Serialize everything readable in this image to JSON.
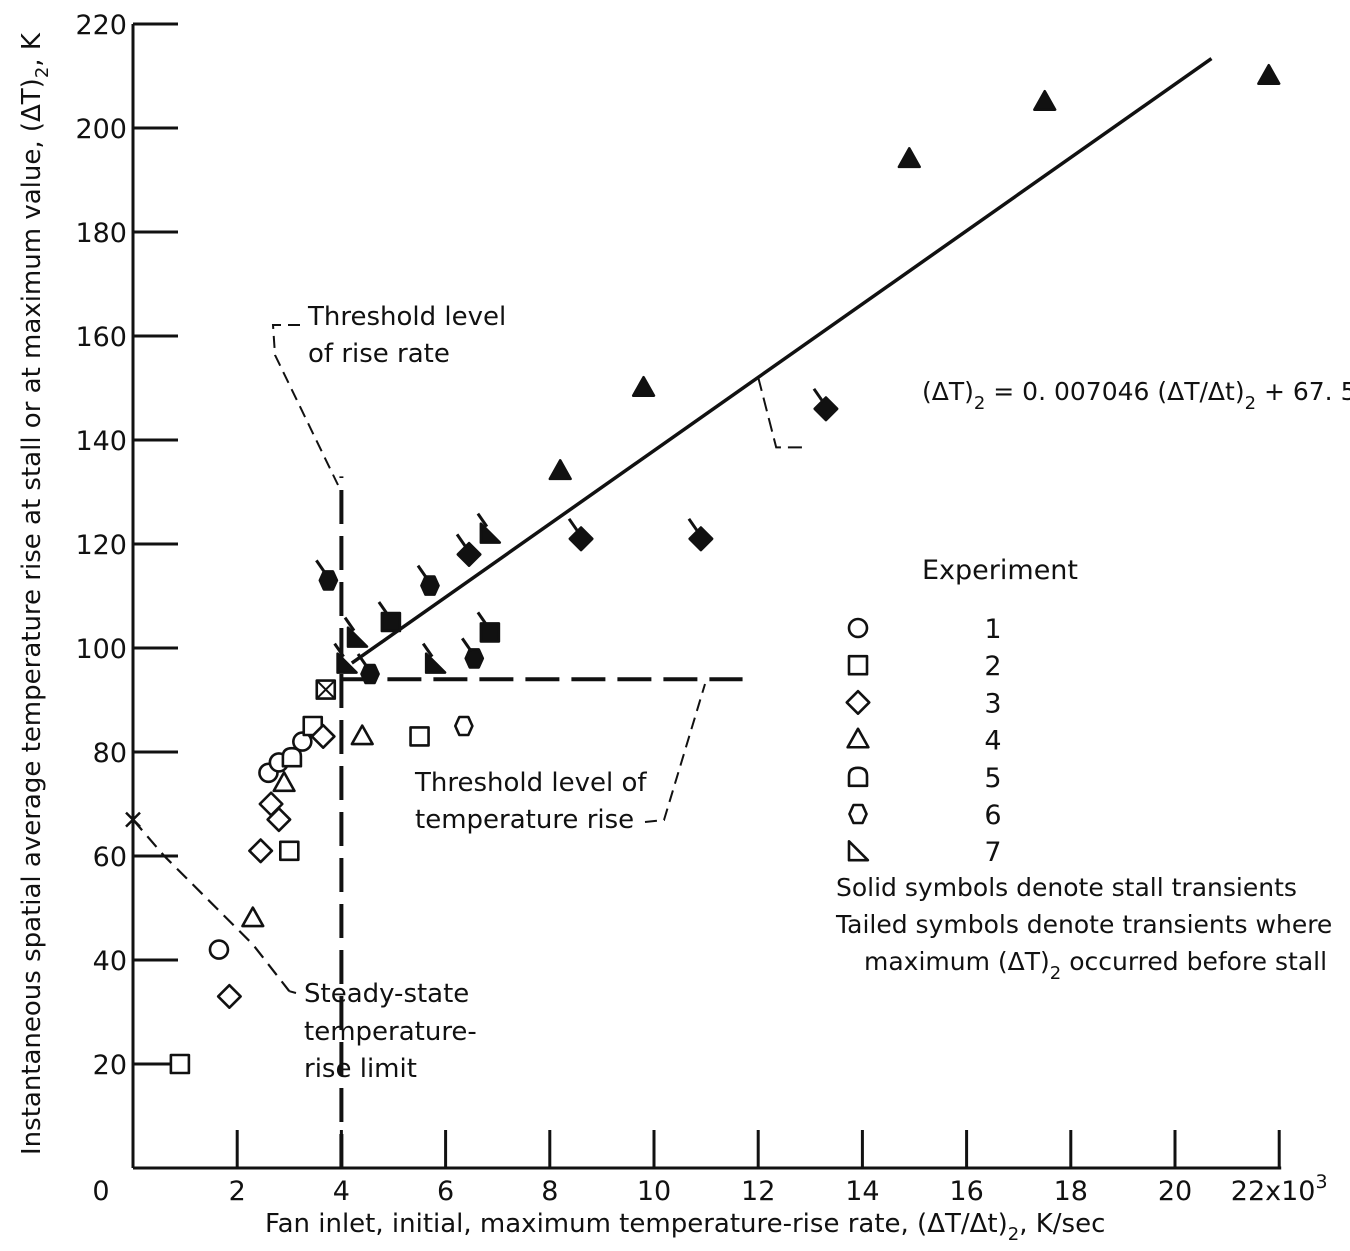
{
  "chart_data": {
    "type": "scatter",
    "xlabel": "Fan inlet, initial, maximum temperature-rise rate, (ΔT/Δt)",
    "xlabel_sub": "2",
    "xlabel_tail": ", K/sec",
    "ylabel": "Instantaneous spatial average temperature rise at stall or at maximum value, (ΔT)",
    "ylabel_sub": "2",
    "ylabel_tail": ", K",
    "xlim": [
      0,
      22000
    ],
    "ylim": [
      0,
      220
    ],
    "x_ticks": [
      0,
      2000,
      4000,
      6000,
      8000,
      10000,
      12000,
      14000,
      16000,
      18000,
      20000,
      22000
    ],
    "x_tick_labels": [
      "0",
      "2",
      "4",
      "6",
      "8",
      "10",
      "12",
      "14",
      "16",
      "18",
      "20",
      "22x10"
    ],
    "x_tick_exponent": "3",
    "y_ticks": [
      20,
      40,
      60,
      80,
      100,
      120,
      140,
      160,
      180,
      200,
      220
    ],
    "y_tick_labels": [
      "20",
      "40",
      "60",
      "80",
      "100",
      "120",
      "140",
      "160",
      "180",
      "200",
      "220"
    ],
    "fit_line": {
      "slope": 0.007046,
      "intercept": 67.5,
      "x_range": [
        4200,
        20700
      ]
    },
    "fit_label": {
      "text_a": "(ΔT)",
      "sub_a": "2",
      "text_b": " = 0. 007046 (ΔT/Δt)",
      "sub_b": "2",
      "text_c": " + 67. 5"
    },
    "threshold_rise_rate": {
      "x": 4000,
      "y_range": [
        0,
        133
      ],
      "label_lines": [
        "Threshold level",
        "of rise rate"
      ]
    },
    "threshold_temperature_rise": {
      "y": 94,
      "x_range": [
        4000,
        11700
      ],
      "label_lines": [
        "Threshold level of",
        "temperature rise"
      ]
    },
    "steady_state_limit": {
      "points": [
        [
          0,
          67
        ],
        [
          600,
          60
        ],
        [
          1600,
          50
        ],
        [
          2300,
          43
        ],
        [
          3000,
          34
        ]
      ],
      "label_lines": [
        "Steady-state",
        "temperature-",
        "rise limit"
      ]
    },
    "legend": {
      "title": "Experiment",
      "entries": [
        {
          "experiment": "1",
          "marker": "circle"
        },
        {
          "experiment": "2",
          "marker": "square"
        },
        {
          "experiment": "3",
          "marker": "diamond"
        },
        {
          "experiment": "4",
          "marker": "triangle"
        },
        {
          "experiment": "5",
          "marker": "dshape"
        },
        {
          "experiment": "6",
          "marker": "octagon"
        },
        {
          "experiment": "7",
          "marker": "righttri"
        }
      ],
      "notes": [
        "Solid symbols denote stall transients",
        "Tailed symbols denote transients where",
        "maximum (ΔT)"
      ],
      "note_sub": "2",
      "note_tail": " occurred before stall"
    },
    "points": [
      {
        "experiment": "2",
        "x": 900,
        "y": 20,
        "solid": false,
        "tailed": false
      },
      {
        "experiment": "1",
        "x": 1650,
        "y": 42,
        "solid": false,
        "tailed": false
      },
      {
        "experiment": "3",
        "x": 1850,
        "y": 33,
        "solid": false,
        "tailed": false
      },
      {
        "experiment": "4",
        "x": 2300,
        "y": 48,
        "solid": false,
        "tailed": false
      },
      {
        "experiment": "3",
        "x": 2450,
        "y": 61,
        "solid": false,
        "tailed": false
      },
      {
        "experiment": "1",
        "x": 2600,
        "y": 76,
        "solid": false,
        "tailed": false
      },
      {
        "experiment": "3",
        "x": 2650,
        "y": 70,
        "solid": false,
        "tailed": false
      },
      {
        "experiment": "3",
        "x": 2800,
        "y": 67,
        "solid": false,
        "tailed": false
      },
      {
        "experiment": "4",
        "x": 2900,
        "y": 74,
        "solid": false,
        "tailed": false
      },
      {
        "experiment": "1",
        "x": 2800,
        "y": 78,
        "solid": false,
        "tailed": false
      },
      {
        "experiment": "2",
        "x": 3000,
        "y": 61,
        "solid": false,
        "tailed": false
      },
      {
        "experiment": "5",
        "x": 3050,
        "y": 79,
        "solid": false,
        "tailed": false
      },
      {
        "experiment": "1",
        "x": 3250,
        "y": 82,
        "solid": false,
        "tailed": false
      },
      {
        "experiment": "2",
        "x": 3450,
        "y": 85,
        "solid": false,
        "tailed": false
      },
      {
        "experiment": "3",
        "x": 3650,
        "y": 83,
        "solid": false,
        "tailed": false
      },
      {
        "experiment": "2",
        "x": 3700,
        "y": 92,
        "solid": false,
        "tailed": false
      },
      {
        "experiment": "4",
        "x": 4400,
        "y": 83,
        "solid": false,
        "tailed": false
      },
      {
        "experiment": "2",
        "x": 5500,
        "y": 83,
        "solid": false,
        "tailed": false
      },
      {
        "experiment": "6",
        "x": 6350,
        "y": 85,
        "solid": false,
        "tailed": false
      },
      {
        "experiment": "6",
        "x": 3750,
        "y": 113,
        "solid": true,
        "tailed": true
      },
      {
        "experiment": "7",
        "x": 4100,
        "y": 97,
        "solid": true,
        "tailed": true
      },
      {
        "experiment": "7",
        "x": 4300,
        "y": 102,
        "solid": true,
        "tailed": true
      },
      {
        "experiment": "6",
        "x": 4550,
        "y": 95,
        "solid": true,
        "tailed": true
      },
      {
        "experiment": "2",
        "x": 4950,
        "y": 105,
        "solid": true,
        "tailed": true
      },
      {
        "experiment": "6",
        "x": 5700,
        "y": 112,
        "solid": true,
        "tailed": true
      },
      {
        "experiment": "7",
        "x": 5800,
        "y": 97,
        "solid": true,
        "tailed": true
      },
      {
        "experiment": "3",
        "x": 6450,
        "y": 118,
        "solid": true,
        "tailed": true
      },
      {
        "experiment": "6",
        "x": 6550,
        "y": 98,
        "solid": true,
        "tailed": true
      },
      {
        "experiment": "7",
        "x": 6850,
        "y": 122,
        "solid": true,
        "tailed": true
      },
      {
        "experiment": "2",
        "x": 6850,
        "y": 103,
        "solid": true,
        "tailed": true
      },
      {
        "experiment": "4",
        "x": 8200,
        "y": 134,
        "solid": true,
        "tailed": false
      },
      {
        "experiment": "3",
        "x": 8600,
        "y": 121,
        "solid": true,
        "tailed": true
      },
      {
        "experiment": "4",
        "x": 9800,
        "y": 150,
        "solid": true,
        "tailed": false
      },
      {
        "experiment": "3",
        "x": 10900,
        "y": 121,
        "solid": true,
        "tailed": true
      },
      {
        "experiment": "3",
        "x": 13300,
        "y": 146,
        "solid": true,
        "tailed": true
      },
      {
        "experiment": "4",
        "x": 14900,
        "y": 194,
        "solid": true,
        "tailed": false
      },
      {
        "experiment": "4",
        "x": 17500,
        "y": 205,
        "solid": true,
        "tailed": false
      },
      {
        "experiment": "4",
        "x": 21800,
        "y": 210,
        "solid": true,
        "tailed": false
      }
    ]
  }
}
